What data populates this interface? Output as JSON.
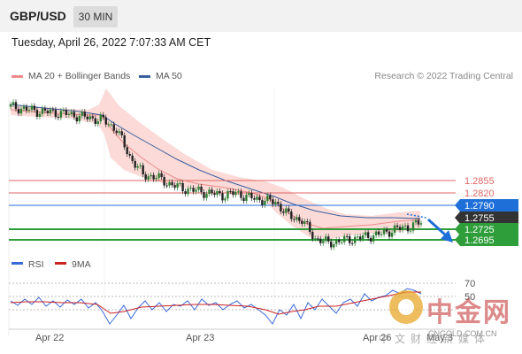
{
  "header": {
    "symbol": "GBP/USD",
    "timeframe": "30 MIN"
  },
  "datetime": "Tuesday, April 26, 2022 7:07:33 AM CET",
  "legend": {
    "bb": {
      "label": "MA 20 + Bollinger Bands",
      "color": "#f08a8a"
    },
    "ma50": {
      "label": "MA 50",
      "color": "#3a5fa0"
    }
  },
  "credit": "Research © 2022 Trading Central",
  "levels": [
    {
      "label": "1.2855",
      "value": 1.2855,
      "kind": "resistance"
    },
    {
      "label": "1.2820",
      "value": 1.282,
      "kind": "resistance"
    },
    {
      "label": "1.2790",
      "value": 1.279,
      "kind": "pivot"
    },
    {
      "label": "1.2755",
      "value": 1.2755,
      "kind": "last"
    },
    {
      "label": "1.2725",
      "value": 1.2725,
      "kind": "support"
    },
    {
      "label": "1.2695",
      "value": 1.2695,
      "kind": "support"
    }
  ],
  "colors": {
    "resistance": "#e06666",
    "pivot": "#1f6fd9",
    "last": "#333333",
    "support": "#2e9e3a"
  },
  "rsi": {
    "legend_rsi": "RSI",
    "legend_ma": "9MA",
    "rsi_color": "#3a6ad8",
    "ma_color": "#cc2222",
    "levels": [
      "70",
      "50"
    ]
  },
  "x_axis": {
    "labels": [
      "Apr 22",
      "Apr 23",
      "Apr 26",
      "May 3"
    ]
  },
  "watermark": {
    "name": "中金网",
    "url": "CNGOLD.COM.CN",
    "sub": "中文财经新媒体"
  },
  "chart_data": {
    "type": "candlestick",
    "ylim": [
      1.268,
      1.305
    ],
    "close_approx": [
      1.301,
      1.3005,
      1.3,
      1.2998,
      1.2995,
      1.299,
      1.2985,
      1.298,
      1.296,
      1.29,
      1.286,
      1.2855,
      1.284,
      1.283,
      1.2825,
      1.282,
      1.2815,
      1.282,
      1.281,
      1.2805,
      1.28,
      1.277,
      1.276,
      1.272,
      1.271,
      1.2715,
      1.272,
      1.2725,
      1.273,
      1.274,
      1.2745,
      1.2755
    ]
  }
}
